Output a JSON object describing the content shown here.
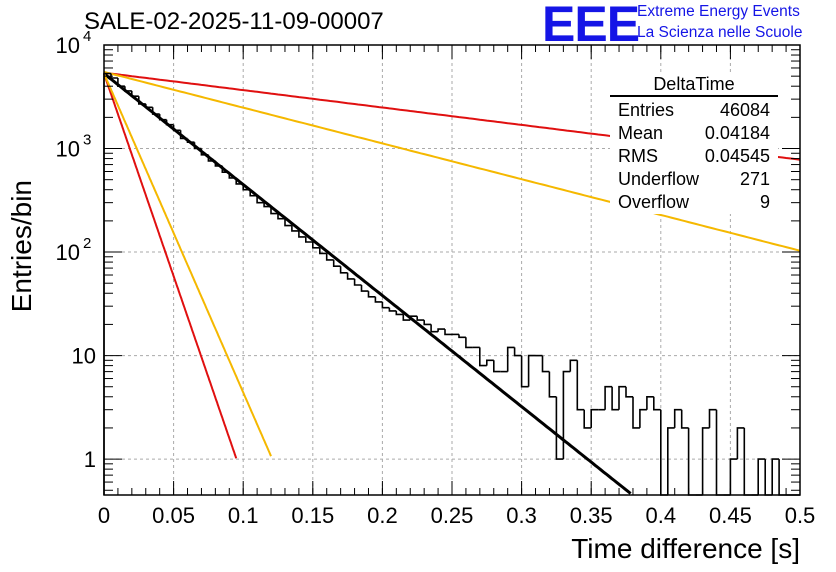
{
  "title": "SALE-02-2025-11-09-00007",
  "logo": {
    "mark": "EEE",
    "line1": "Extreme Energy Events",
    "line2": "La Scienza nelle Scuole",
    "color": "#1515e6"
  },
  "stats": {
    "title": "DeltaTime",
    "rows": [
      {
        "label": "Entries",
        "value": "46084"
      },
      {
        "label": "Mean",
        "value": "0.04184"
      },
      {
        "label": "RMS",
        "value": "0.04545"
      },
      {
        "label": "Underflow",
        "value": "271"
      },
      {
        "label": "Overflow",
        "value": "9"
      }
    ]
  },
  "chart_data": {
    "type": "histogram",
    "title": "SALE-02-2025-11-09-00007",
    "xlabel": "Time difference [s]",
    "ylabel": "Entries/bin",
    "xlim": [
      0,
      0.5
    ],
    "ylim": [
      0.45,
      10000
    ],
    "yscale": "log",
    "grid": true,
    "x_ticks": [
      "0",
      "0.05",
      "0.1",
      "0.15",
      "0.2",
      "0.25",
      "0.3",
      "0.35",
      "0.4",
      "0.45",
      "0.5"
    ],
    "y_ticks": [
      {
        "value": 1,
        "label": "1"
      },
      {
        "value": 10,
        "label": "10"
      },
      {
        "value": 100,
        "label": "10",
        "exp": "2"
      },
      {
        "value": 1000,
        "label": "10",
        "exp": "3"
      },
      {
        "value": 10000,
        "label": "10",
        "exp": "4"
      }
    ],
    "histogram": {
      "name": "DeltaTime",
      "bin_width": 0.005,
      "counts": [
        5300,
        4800,
        4000,
        3600,
        3200,
        2700,
        2500,
        2150,
        1900,
        1700,
        1500,
        1250,
        1150,
        1000,
        870,
        760,
        680,
        590,
        520,
        455,
        400,
        350,
        300,
        275,
        235,
        210,
        180,
        160,
        140,
        125,
        110,
        97,
        84,
        73,
        63,
        55,
        48,
        42,
        37,
        33,
        29,
        27,
        25,
        22,
        24,
        22,
        20,
        17,
        18,
        16,
        16,
        15,
        12,
        12,
        8,
        9,
        7,
        7,
        12,
        10,
        5,
        10,
        10,
        7,
        4,
        1,
        7,
        9,
        3,
        2,
        3,
        3,
        5,
        3,
        5,
        4,
        2,
        3,
        4,
        3,
        0,
        2,
        3,
        2,
        0,
        0,
        2,
        3,
        0,
        0,
        1,
        2,
        0,
        0,
        1,
        0,
        1,
        0,
        0,
        0
      ]
    },
    "series": [
      {
        "name": "fit",
        "color": "#000000",
        "y0": 5300,
        "tau": 0.0405,
        "x_end": 0.39
      },
      {
        "name": "fast-limit",
        "color": "#e01010",
        "y0": 5300,
        "tau": 0.0111,
        "x_end": 0.095
      },
      {
        "name": "fast-limit-2",
        "color": "#f5b800",
        "y0": 5300,
        "tau": 0.0141,
        "x_end": 0.12
      },
      {
        "name": "slow-limit",
        "color": "#e01010",
        "y0": 5400,
        "tau": 0.2584,
        "x_end": 0.5
      },
      {
        "name": "slow-limit-2",
        "color": "#f5b800",
        "y0": 5500,
        "tau": 0.1257,
        "x_end": 0.5
      }
    ]
  }
}
